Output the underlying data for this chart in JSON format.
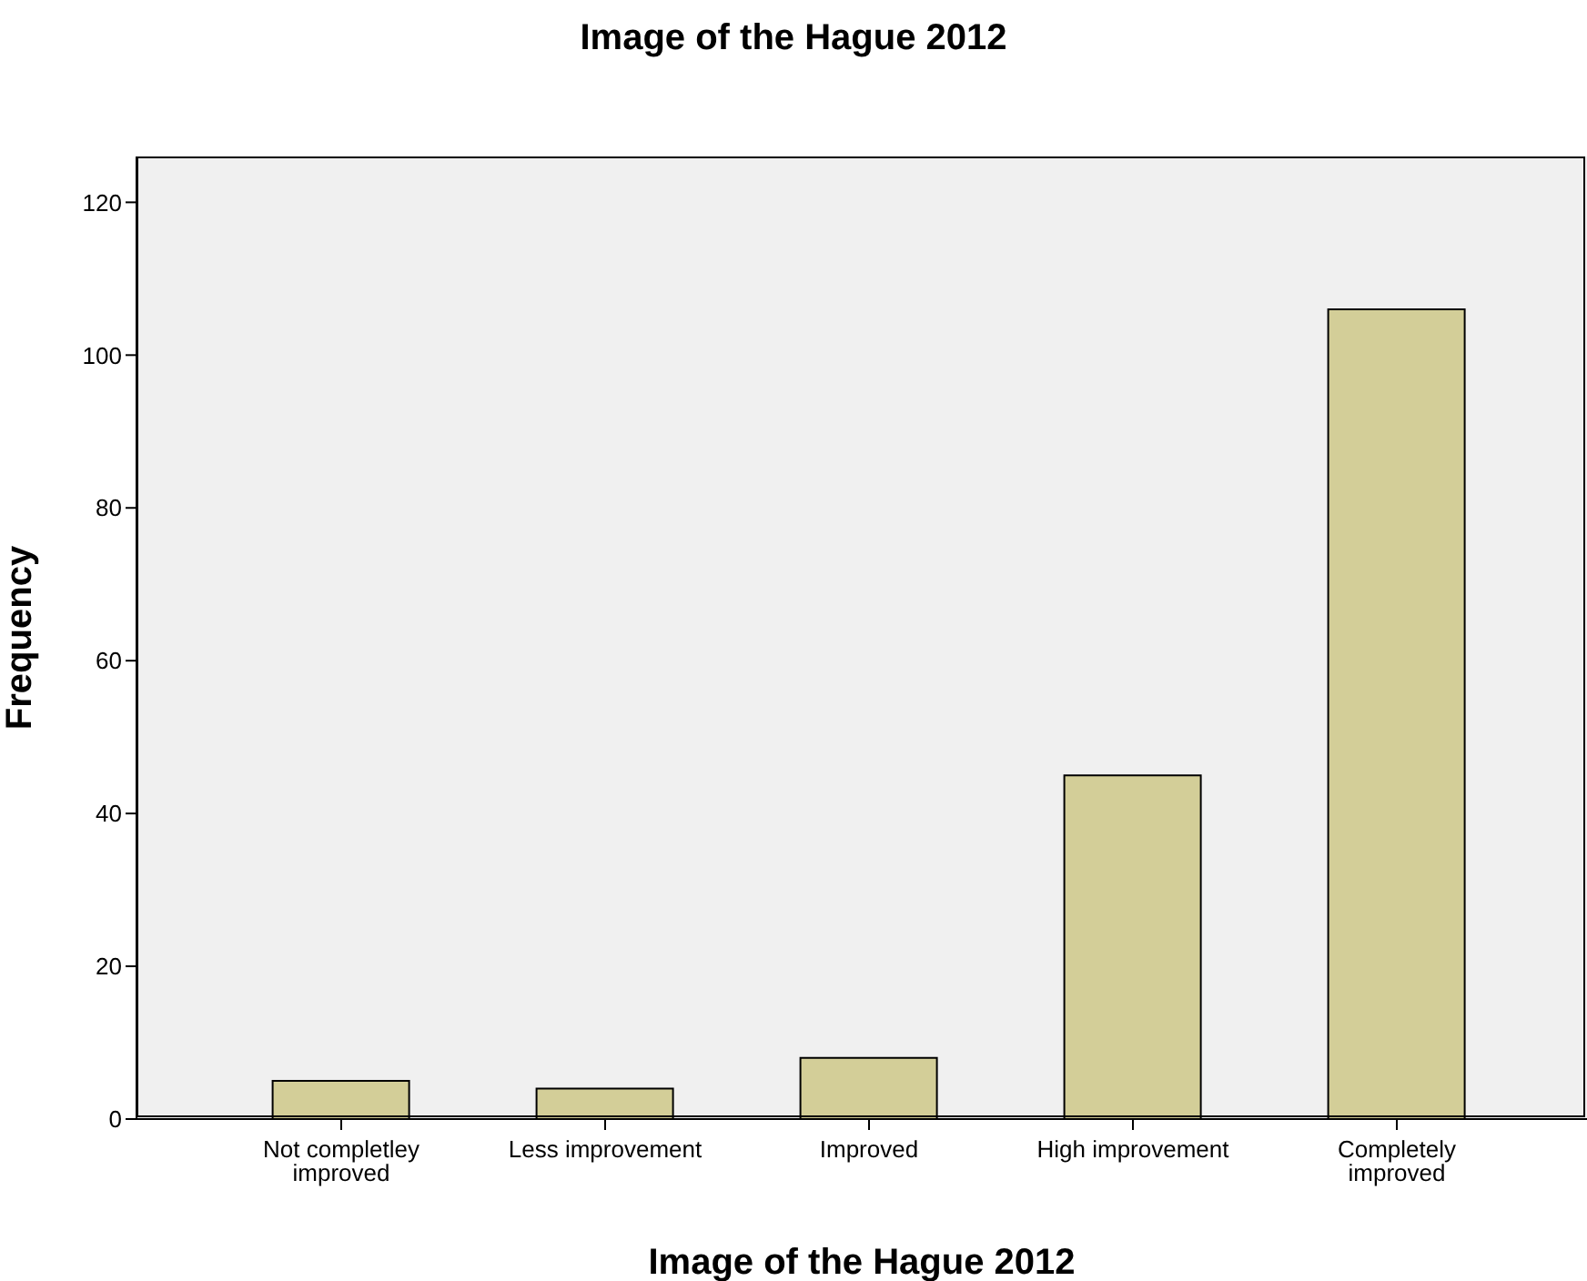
{
  "chart_data": {
    "type": "bar",
    "title": "Image of the Hague 2012",
    "xlabel": "Image of the Hague 2012",
    "ylabel": "Frequency",
    "categories": [
      "Not completley improved",
      "Less improvement",
      "Improved",
      "High improvement",
      "Completely improved"
    ],
    "values": [
      5,
      4,
      8,
      45,
      106
    ],
    "color": "#d3ce98",
    "ylim": [
      0,
      126
    ],
    "yticks": [
      0,
      20,
      40,
      60,
      80,
      100,
      120
    ],
    "grid": false
  }
}
